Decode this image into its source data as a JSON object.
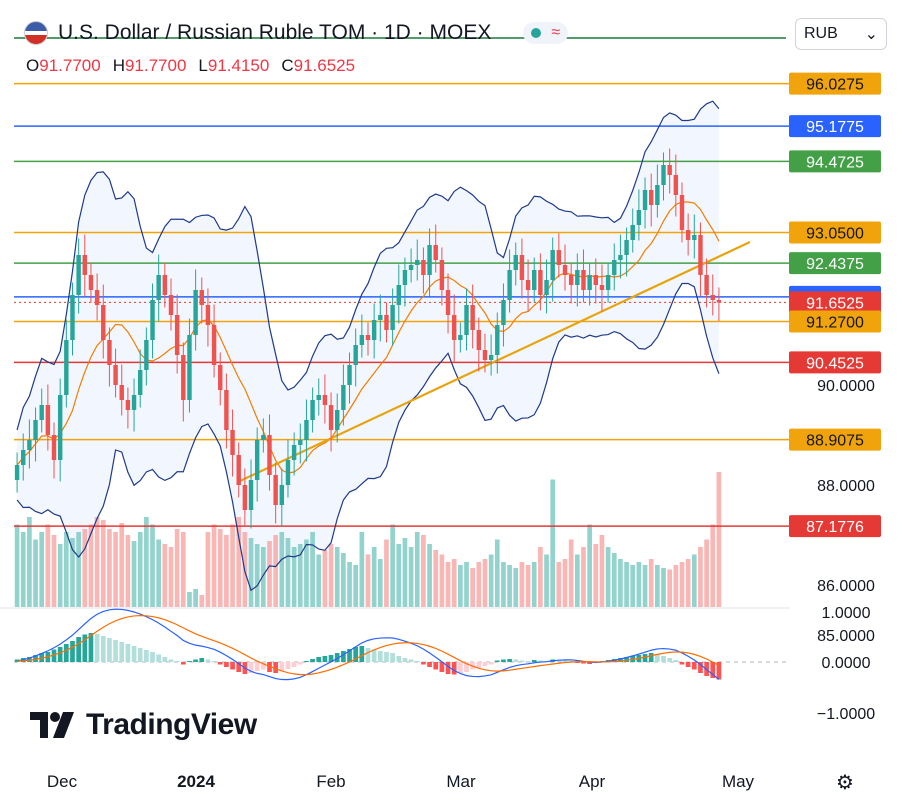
{
  "header": {
    "title": "U.S. Dollar / Russian Ruble TOM · 1D · MOEX",
    "status_symbol": "≈",
    "currency": "RUB",
    "currency_arrow": "⌄"
  },
  "ohlc": {
    "o_label": "O",
    "o_value": "91.7700",
    "h_label": "H",
    "h_value": "91.7700",
    "l_label": "L",
    "l_value": "91.4150",
    "c_label": "C",
    "c_value": "91.6525"
  },
  "logo": {
    "text": "TradingView"
  },
  "colors": {
    "up": "#26a69a",
    "down": "#ef5350",
    "orange": "#f0a30a",
    "green": "#43a047",
    "blue": "#2962ff",
    "red": "#e53935",
    "band": "#1e3a8a"
  },
  "chart_data": {
    "type": "candlestick",
    "ylim": [
      84.6,
      97.3
    ],
    "x_ticks": [
      "Dec",
      "2024",
      "Feb",
      "Mar",
      "Apr",
      "May"
    ],
    "y_ticks": [
      "90.0000",
      "88.0000",
      "86.0000",
      "85.0000"
    ],
    "level_lines": [
      {
        "value": 96.0275,
        "label": "96.0275",
        "color": "orange"
      },
      {
        "value": 95.1775,
        "label": "95.1775",
        "color": "blue"
      },
      {
        "value": 94.4725,
        "label": "94.4725",
        "color": "green"
      },
      {
        "value": 93.05,
        "label": "93.0500",
        "color": "orange"
      },
      {
        "value": 92.4375,
        "label": "92.4375",
        "color": "green"
      },
      {
        "value": 91.7625,
        "label": "91.7625",
        "color": "blue"
      },
      {
        "value": 91.6525,
        "label": "91.6525",
        "color": "red"
      },
      {
        "value": 91.27,
        "label": "91.2700",
        "color": "orange"
      },
      {
        "value": 90.4525,
        "label": "90.4525",
        "color": "red"
      },
      {
        "value": 88.9075,
        "label": "88.9075",
        "color": "orange"
      },
      {
        "value": 87.1776,
        "label": "87.1776",
        "color": "red"
      }
    ],
    "closes": [
      88.4,
      88.7,
      88.9,
      89.3,
      89.6,
      89.0,
      88.5,
      89.8,
      90.9,
      91.8,
      92.6,
      92.2,
      91.9,
      91.6,
      90.9,
      90.4,
      90.0,
      89.7,
      89.5,
      89.8,
      90.3,
      90.9,
      91.7,
      92.2,
      91.8,
      91.4,
      90.6,
      89.7,
      91.0,
      91.9,
      91.6,
      91.2,
      90.4,
      89.9,
      89.1,
      88.6,
      88.0,
      87.5,
      88.1,
      88.9,
      89.0,
      88.2,
      87.6,
      88.0,
      88.5,
      88.8,
      88.9,
      89.3,
      89.7,
      89.8,
      89.6,
      89.1,
      89.5,
      90.0,
      90.4,
      90.8,
      91.0,
      90.9,
      91.3,
      91.4,
      91.1,
      91.6,
      92.0,
      92.3,
      92.4,
      92.5,
      92.2,
      92.8,
      92.5,
      91.9,
      91.4,
      90.9,
      91.0,
      91.6,
      91.1,
      90.7,
      90.5,
      90.6,
      91.2,
      91.7,
      92.3,
      92.6,
      92.1,
      91.9,
      92.3,
      91.8,
      92.1,
      92.7,
      92.4,
      92.2,
      92.0,
      92.3,
      91.9,
      92.2,
      92.0,
      91.9,
      92.2,
      92.5,
      92.6,
      92.9,
      93.2,
      93.5,
      93.9,
      93.6,
      94.0,
      94.4,
      94.2,
      93.8,
      93.1,
      92.9,
      93.0,
      92.2,
      91.8,
      91.7,
      91.65
    ],
    "volume": [
      0.55,
      0.5,
      0.6,
      0.45,
      0.5,
      0.55,
      0.48,
      0.42,
      0.5,
      0.46,
      0.5,
      0.52,
      0.55,
      0.6,
      0.58,
      0.52,
      0.5,
      0.56,
      0.48,
      0.44,
      0.5,
      0.6,
      0.55,
      0.45,
      0.42,
      0.4,
      0.52,
      0.5,
      0.1,
      0.12,
      0.08,
      0.5,
      0.55,
      0.52,
      0.48,
      0.55,
      0.6,
      0.5,
      0.46,
      0.42,
      0.4,
      0.44,
      0.48,
      0.5,
      0.46,
      0.4,
      0.42,
      0.45,
      0.5,
      0.35,
      0.38,
      0.42,
      0.4,
      0.36,
      0.3,
      0.28,
      0.5,
      0.35,
      0.4,
      0.32,
      0.45,
      0.55,
      0.42,
      0.46,
      0.4,
      0.5,
      0.48,
      0.42,
      0.38,
      0.35,
      0.3,
      0.32,
      0.28,
      0.3,
      0.26,
      0.3,
      0.32,
      0.35,
      0.45,
      0.3,
      0.28,
      0.26,
      0.3,
      0.28,
      0.3,
      0.4,
      0.35,
      0.85,
      0.3,
      0.32,
      0.45,
      0.35,
      0.4,
      0.55,
      0.42,
      0.48,
      0.4,
      0.36,
      0.32,
      0.3,
      0.28,
      0.3,
      0.28,
      0.32,
      0.28,
      0.26,
      0.25,
      0.28,
      0.3,
      0.32,
      0.35,
      0.4,
      0.45,
      0.55,
      0.9
    ],
    "macd_ticks": [
      "1.0000",
      "0.0000",
      "−1.0000"
    ],
    "macd_hist": [
      0.05,
      0.08,
      0.1,
      0.14,
      0.18,
      0.2,
      0.25,
      0.3,
      0.36,
      0.42,
      0.5,
      0.55,
      0.58,
      0.56,
      0.52,
      0.48,
      0.44,
      0.4,
      0.36,
      0.32,
      0.28,
      0.24,
      0.2,
      0.15,
      0.1,
      0.05,
      0.02,
      -0.05,
      0.02,
      0.05,
      0.08,
      0.05,
      0.02,
      -0.05,
      -0.1,
      -0.15,
      -0.2,
      -0.24,
      -0.22,
      -0.18,
      -0.15,
      -0.2,
      -0.22,
      -0.18,
      -0.14,
      -0.1,
      -0.05,
      0.02,
      0.06,
      0.1,
      0.12,
      0.14,
      0.18,
      0.22,
      0.26,
      0.3,
      0.32,
      0.28,
      0.25,
      0.22,
      0.2,
      0.18,
      0.12,
      0.08,
      0.05,
      0.02,
      -0.05,
      -0.1,
      -0.15,
      -0.2,
      -0.24,
      -0.25,
      -0.22,
      -0.2,
      -0.15,
      -0.12,
      -0.08,
      -0.05,
      0.03,
      0.05,
      0.06,
      0.05,
      0.03,
      0.02,
      0.04,
      0.03,
      0.02,
      0.05,
      0.04,
      0.03,
      0.02,
      -0.02,
      -0.03,
      -0.04,
      -0.02,
      0.02,
      0.04,
      0.06,
      0.08,
      0.1,
      0.12,
      0.14,
      0.16,
      0.18,
      0.16,
      0.12,
      0.08,
      0.04,
      -0.05,
      -0.1,
      -0.15,
      -0.22,
      -0.28,
      -0.32,
      -0.35
    ]
  }
}
